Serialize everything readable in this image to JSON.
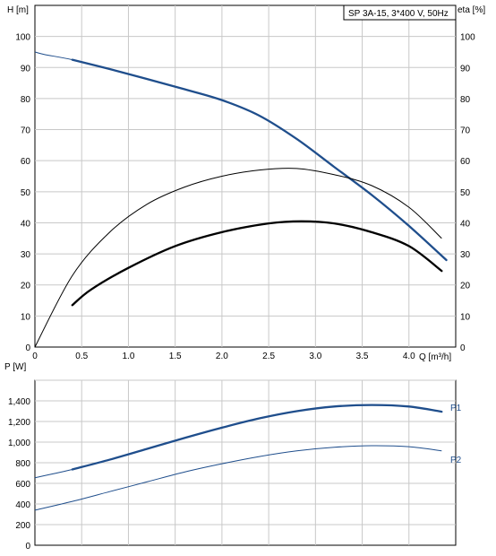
{
  "chart_data": [
    {
      "type": "line",
      "title": "SP 3A-15, 3*400 V, 50Hz",
      "xlabel": "Q [m³/h]",
      "ylabel": "H [m]",
      "ylabel_right": "eta [%]",
      "xlim": [
        0,
        4.5
      ],
      "ylim": [
        0,
        110
      ],
      "ylim_right": [
        0,
        110
      ],
      "x_ticks": [
        "0",
        "0.5",
        "1.0",
        "1.5",
        "2.0",
        "2.5",
        "3.0",
        "3.5",
        "4.0"
      ],
      "y_ticks": [
        "0",
        "10",
        "20",
        "30",
        "40",
        "50",
        "60",
        "70",
        "80",
        "90",
        "100"
      ],
      "y_ticks_right": [
        "0",
        "10",
        "20",
        "30",
        "40",
        "50",
        "60",
        "70",
        "80",
        "90",
        "100"
      ],
      "grid": true,
      "series": [
        {
          "id": "H",
          "color": "#1f4e8c",
          "x": [
            0,
            0.1,
            0.4,
            0.8,
            1.2,
            1.6,
            2.0,
            2.4,
            2.8,
            3.2,
            3.6,
            4.0,
            4.4
          ],
          "y": [
            95,
            94.2,
            92.5,
            89.5,
            86.3,
            83.0,
            79.5,
            74.5,
            67.0,
            58.0,
            49.0,
            39.0,
            28.0
          ],
          "operating_range": [
            0.4,
            4.4
          ]
        },
        {
          "id": "eta_total",
          "color": "#000000",
          "x": [
            0.4,
            0.6,
            1.0,
            1.5,
            2.0,
            2.5,
            2.85,
            3.2,
            3.6,
            4.0,
            4.35
          ],
          "y": [
            13.5,
            18.5,
            25.5,
            32.5,
            37.0,
            39.8,
            40.5,
            39.8,
            37.0,
            32.5,
            24.5
          ],
          "operating_range": [
            0.4,
            4.35
          ]
        },
        {
          "id": "eta_pump",
          "color": "#000000",
          "x": [
            0,
            0.4,
            0.8,
            1.2,
            1.6,
            2.0,
            2.4,
            2.8,
            3.2,
            3.6,
            4.0,
            4.35
          ],
          "y": [
            0,
            23.0,
            37.0,
            46.0,
            51.5,
            55.0,
            57.0,
            57.5,
            55.5,
            52.0,
            45.0,
            35.0
          ]
        }
      ]
    },
    {
      "type": "line",
      "xlabel": "",
      "ylabel": "P [W]",
      "xlim": [
        0,
        4.5
      ],
      "ylim": [
        0,
        1600
      ],
      "y_ticks": [
        "0",
        "200",
        "400",
        "600",
        "800",
        "1,000",
        "1,200",
        "1,400"
      ],
      "grid": true,
      "series": [
        {
          "name": "P1",
          "color": "#1f4e8c",
          "x": [
            0,
            0.4,
            0.8,
            1.2,
            1.6,
            2.0,
            2.4,
            2.8,
            3.2,
            3.6,
            4.0,
            4.35
          ],
          "y": [
            655,
            735,
            830,
            935,
            1040,
            1140,
            1230,
            1300,
            1345,
            1360,
            1345,
            1295
          ],
          "operating_range": [
            0.4,
            4.35
          ]
        },
        {
          "name": "P2",
          "color": "#1f4e8c",
          "x": [
            0,
            0.4,
            0.8,
            1.2,
            1.6,
            2.0,
            2.4,
            2.8,
            3.2,
            3.6,
            4.0,
            4.35
          ],
          "y": [
            340,
            425,
            520,
            615,
            710,
            790,
            860,
            915,
            950,
            965,
            955,
            915
          ]
        }
      ]
    }
  ]
}
